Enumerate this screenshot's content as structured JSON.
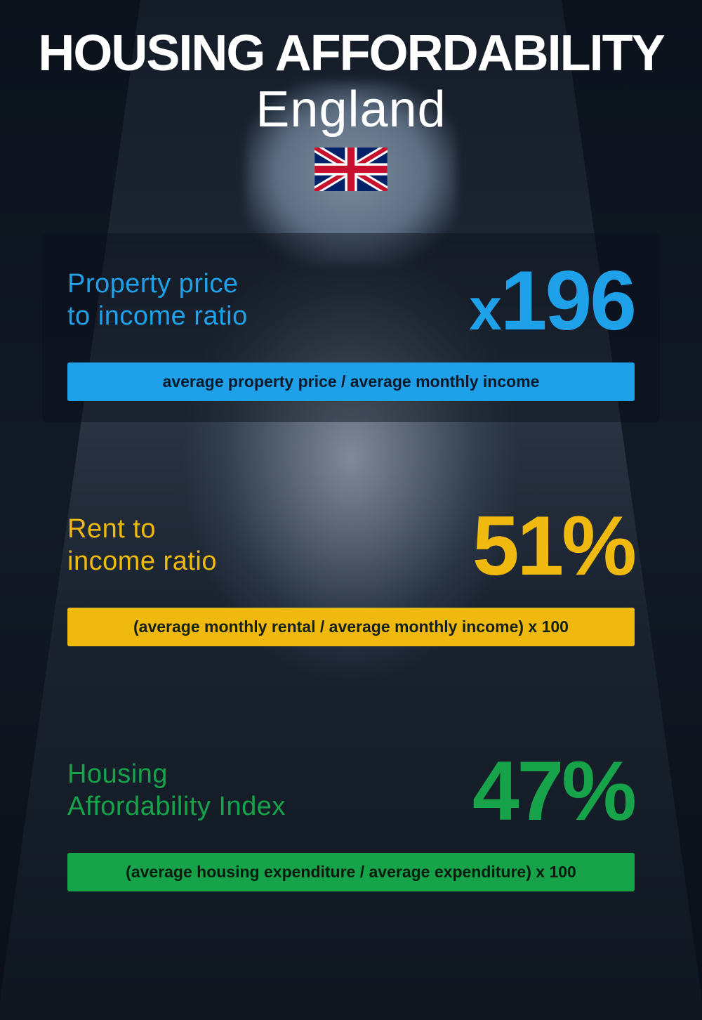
{
  "header": {
    "title": "HOUSING AFFORDABILITY",
    "subtitle": "England",
    "title_fontsize": 72,
    "subtitle_fontsize": 72,
    "title_color": "#ffffff",
    "subtitle_color": "#ffffff",
    "flag": "uk"
  },
  "metrics": [
    {
      "id": "price-income",
      "label": "Property price\nto income ratio",
      "value_prefix": "x",
      "value": "196",
      "formula": "average property price / average monthly income",
      "accent_color": "#1ea1e8",
      "value_color": "#1ea1e8",
      "label_color": "#1ea1e8",
      "label_fontsize": 38,
      "value_fontsize": 120,
      "formula_fontsize": 23,
      "formula_bg": "#1ea1e8",
      "formula_text_color": "#0a1a2a",
      "card_bg": "rgba(10,16,26,0.45)"
    },
    {
      "id": "rent-income",
      "label": "Rent to\nincome ratio",
      "value_prefix": "",
      "value": "51%",
      "formula": "(average monthly rental / average monthly income) x 100",
      "accent_color": "#f0b90f",
      "value_color": "#f0b90f",
      "label_color": "#f0b90f",
      "label_fontsize": 38,
      "value_fontsize": 120,
      "formula_fontsize": 23,
      "formula_bg": "#f0b90f",
      "formula_text_color": "#142018",
      "card_bg": "transparent"
    },
    {
      "id": "affordability-index",
      "label": "Housing\nAffordability Index",
      "value_prefix": "",
      "value": "47%",
      "formula": "(average housing expenditure / average expenditure) x 100",
      "accent_color": "#17a34a",
      "value_color": "#17a34a",
      "label_color": "#17a34a",
      "label_fontsize": 38,
      "value_fontsize": 120,
      "formula_fontsize": 23,
      "formula_bg": "#17a34a",
      "formula_text_color": "#061a0e",
      "card_bg": "transparent"
    }
  ],
  "background": {
    "base_colors": [
      "#141c28",
      "#1a2330",
      "#2a3442",
      "#0f1620"
    ],
    "sky_color": "#a8b8cc"
  }
}
